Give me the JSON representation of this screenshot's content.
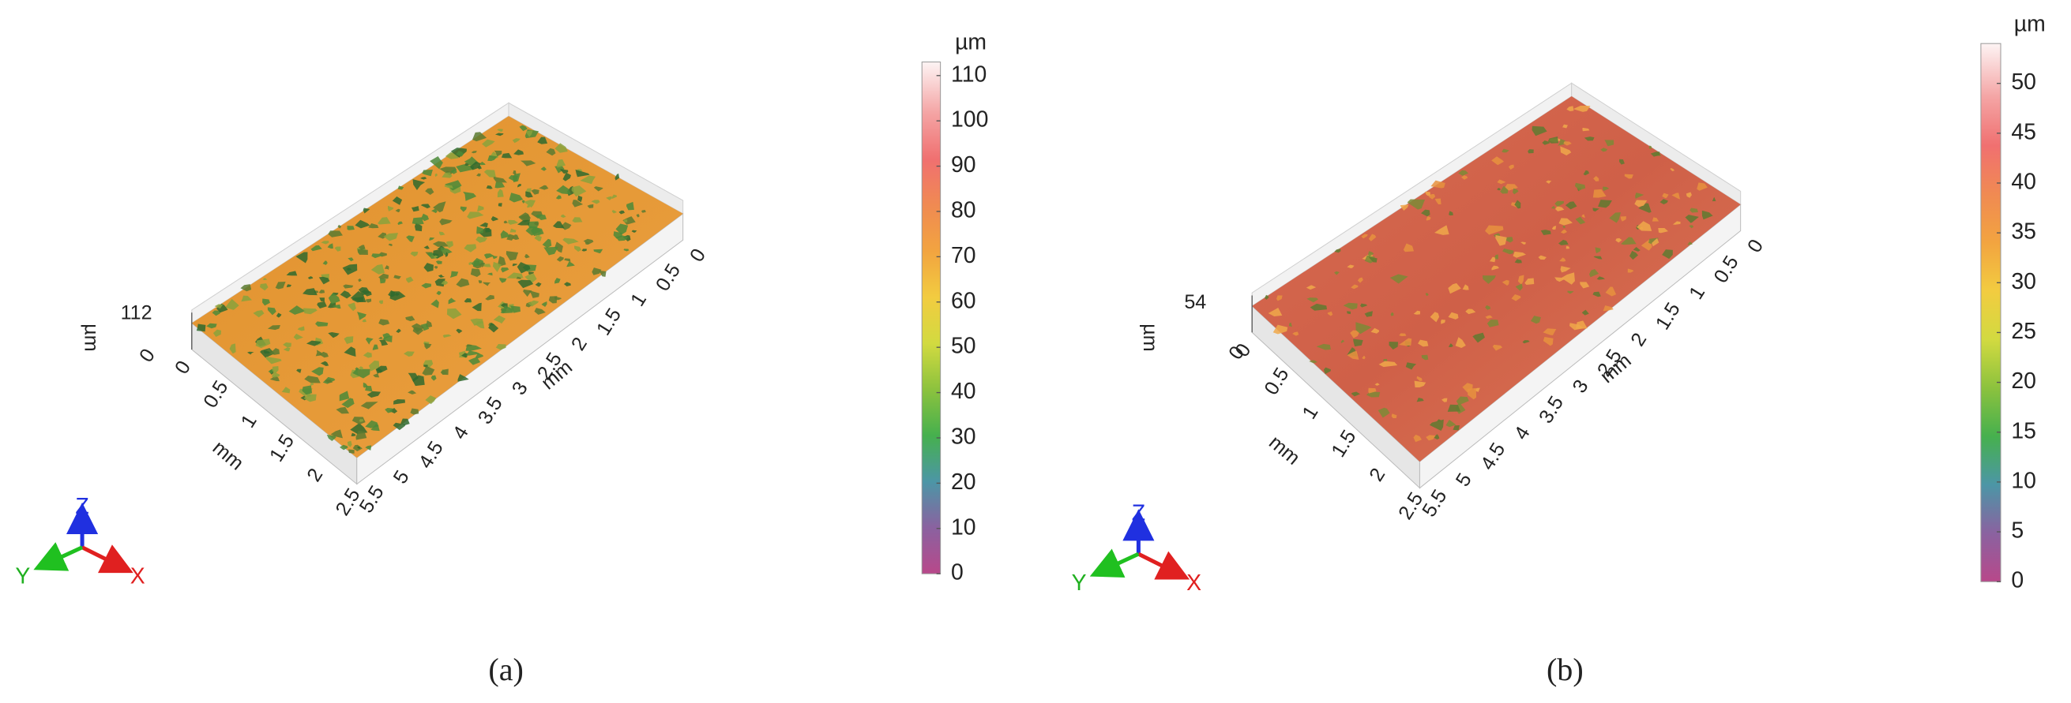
{
  "panels": [
    {
      "label": "(a)",
      "z_unit": "µm",
      "z_ticks": [
        0,
        112
      ],
      "x_axis_label": "mm",
      "y_axis_label": "mm",
      "x_ticks": [
        0,
        0.5,
        1,
        1.5,
        2,
        2.5,
        3,
        3.5,
        4,
        4.5,
        5,
        5.5
      ],
      "y_ticks": [
        0,
        0.5,
        1,
        1.5,
        2,
        2.5
      ],
      "colorbar": {
        "unit": "µm",
        "range": [
          0,
          113
        ],
        "ticks": [
          0,
          10,
          20,
          30,
          40,
          50,
          60,
          70,
          80,
          90,
          100,
          110
        ]
      },
      "triad": {
        "x": "X",
        "y": "Y",
        "z": "Z"
      }
    },
    {
      "label": "(b)",
      "z_unit": "µm",
      "z_ticks": [
        0,
        54
      ],
      "x_axis_label": "mm",
      "y_axis_label": "mm",
      "x_ticks": [
        0,
        0.5,
        1,
        1.5,
        2,
        2.5,
        3,
        3.5,
        4,
        4.5,
        5,
        5.5
      ],
      "y_ticks": [
        0,
        0.5,
        1,
        1.5,
        2,
        2.5
      ],
      "colorbar": {
        "unit": "µm",
        "range": [
          0,
          54
        ],
        "ticks": [
          0,
          5,
          10,
          15,
          20,
          25,
          30,
          35,
          40,
          45,
          50
        ]
      },
      "triad": {
        "x": "X",
        "y": "Y",
        "z": "Z"
      }
    }
  ]
}
